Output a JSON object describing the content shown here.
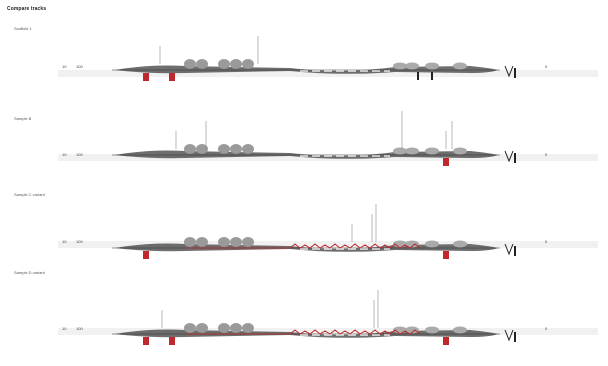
{
  "title": "Compare tracks",
  "footer": "",
  "panels": [
    {
      "label": "Scaffold 1",
      "left_value": "10",
      "left_value_b": "100",
      "right_value": "0"
    },
    {
      "label": "Sample B",
      "left_value": "10",
      "left_value_b": "100",
      "right_value": "0"
    },
    {
      "label": "Sample C variant",
      "left_value": "10",
      "left_value_b": "100",
      "right_value": "0"
    },
    {
      "label": "Sample D variant",
      "left_value": "10",
      "left_value_b": "100",
      "right_value": "0"
    }
  ],
  "colors": {
    "accent": "#c0282d",
    "line": "#333333",
    "bump": "#9a9a9a",
    "track": "#f1f1f1"
  }
}
